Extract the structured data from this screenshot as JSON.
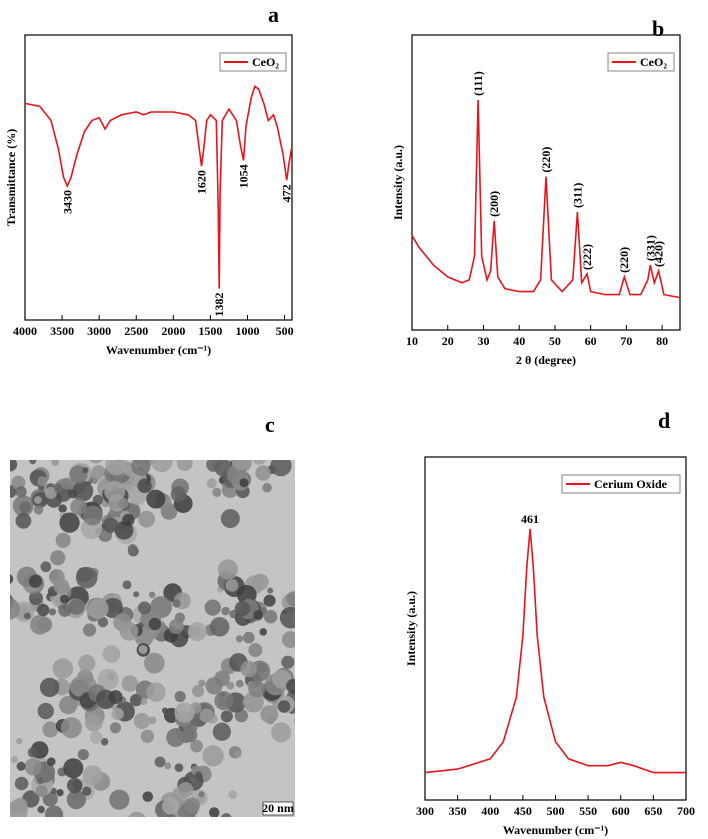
{
  "chart_data": [
    {
      "type": "line",
      "panel_label": "a",
      "x_label": "Wavenumber (cm⁻¹)",
      "y_label": "Transmittance (%)",
      "legend": "upper right",
      "x": [
        4000,
        3800,
        3650,
        3550,
        3480,
        3430,
        3380,
        3300,
        3200,
        3100,
        3000,
        2920,
        2850,
        2700,
        2500,
        2400,
        2300,
        2000,
        1800,
        1700,
        1650,
        1620,
        1590,
        1550,
        1500,
        1420,
        1395,
        1382,
        1370,
        1340,
        1250,
        1150,
        1100,
        1054,
        1020,
        950,
        900,
        850,
        780,
        720,
        650,
        600,
        520,
        472,
        440,
        400
      ],
      "series": [
        {
          "name": "CeO₂",
          "color": "#e8141b",
          "values": [
            76,
            75,
            70,
            60,
            50,
            47,
            50,
            58,
            66,
            70,
            71,
            67,
            70,
            72,
            73,
            72,
            73,
            73,
            72,
            70,
            60,
            54,
            60,
            70,
            72,
            70,
            40,
            11,
            45,
            70,
            74,
            70,
            62,
            56,
            68,
            78,
            82,
            81,
            76,
            70,
            72,
            68,
            58,
            49,
            55,
            61
          ]
        }
      ],
      "xlim": [
        4000,
        400
      ],
      "xticks": [
        4000,
        3500,
        3000,
        2500,
        2000,
        1500,
        1000,
        500
      ],
      "ylim": [
        0,
        100
      ],
      "annotations": [
        {
          "label": "3430",
          "x": 3430
        },
        {
          "label": "1620",
          "x": 1620
        },
        {
          "label": "1382",
          "x": 1382
        },
        {
          "label": "1054",
          "x": 1054
        },
        {
          "label": "472",
          "x": 472
        }
      ]
    },
    {
      "type": "line",
      "panel_label": "b",
      "x_label": "2 θ (degree)",
      "y_label": "Intensity (a.u.)",
      "legend": "upper right",
      "x": [
        10,
        12,
        14,
        16,
        18,
        20,
        22,
        24,
        26,
        27.5,
        28.5,
        29.5,
        31,
        32,
        33,
        34,
        36,
        40,
        44,
        46,
        47.5,
        49,
        52,
        55,
        56.3,
        57.5,
        59,
        60,
        64,
        68,
        69.4,
        71,
        74,
        76,
        76.7,
        77.8,
        79,
        80.5,
        85
      ],
      "series": [
        {
          "name": "CeO₂",
          "color": "#e8141b",
          "values": [
            32,
            28,
            25,
            22,
            20,
            18,
            17,
            16,
            17,
            25,
            78,
            25,
            17,
            20,
            37,
            18,
            14,
            13,
            13,
            17,
            52,
            17,
            13,
            17,
            40,
            16,
            19,
            13,
            12,
            12,
            18,
            12,
            12,
            17,
            22,
            16,
            20,
            12,
            11
          ]
        }
      ],
      "xlim": [
        10,
        85
      ],
      "xticks": [
        10,
        20,
        30,
        40,
        50,
        60,
        70,
        80
      ],
      "ylim": [
        0,
        100
      ],
      "annotations": [
        {
          "label": "(111)",
          "x": 28.5
        },
        {
          "label": "(200)",
          "x": 33
        },
        {
          "label": "(220)",
          "x": 47.5
        },
        {
          "label": "(311)",
          "x": 56.3
        },
        {
          "label": "(222)",
          "x": 59
        },
        {
          "label": "(220)",
          "x": 69.4
        },
        {
          "label": "(331)",
          "x": 76.7
        },
        {
          "label": "(420)",
          "x": 79
        }
      ]
    },
    {
      "type": "line",
      "panel_label": "d",
      "x_label": "Wavenumber (cm⁻¹)",
      "y_label": "Intensity (a.u.)",
      "legend": "upper right",
      "x": [
        300,
        350,
        400,
        420,
        440,
        450,
        456,
        461,
        466,
        472,
        482,
        500,
        520,
        550,
        580,
        600,
        620,
        650,
        700
      ],
      "series": [
        {
          "name": "Cerium Oxide",
          "color": "#e8141b",
          "values": [
            8,
            9,
            12,
            17,
            30,
            48,
            68,
            79,
            68,
            48,
            30,
            17,
            12,
            10,
            10,
            11,
            10,
            8,
            8
          ]
        }
      ],
      "xlim": [
        300,
        700
      ],
      "xticks": [
        300,
        350,
        400,
        450,
        500,
        550,
        600,
        650,
        700
      ],
      "ylim": [
        0,
        100
      ],
      "annotations": [
        {
          "label": "461",
          "x": 461
        }
      ]
    }
  ],
  "image_panel": {
    "panel_label": "c",
    "scale_bar": "20 nm"
  }
}
